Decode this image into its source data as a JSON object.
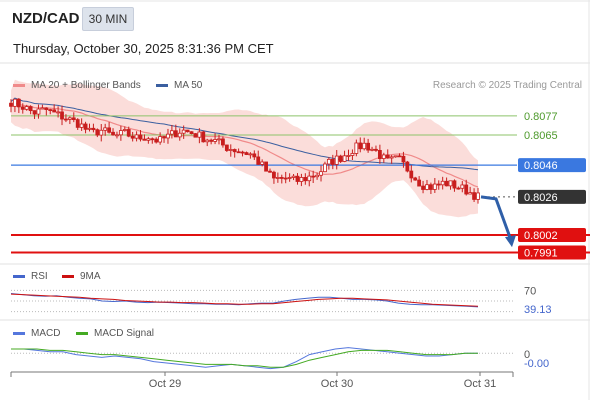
{
  "header": {
    "symbol": "NZD/CAD",
    "timeframe": "30 MIN",
    "datetime": "Thursday, October 30, 2025 8:31:36 PM CET"
  },
  "legend": {
    "ma20_label": "MA 20 + Bollinger Bands",
    "ma50_label": "MA 50",
    "rsi_label": "RSI",
    "rsi_ma_label": "9MA",
    "macd_label": "MACD",
    "macd_signal_label": "MACD Signal",
    "credit": "Research © 2025 Trading Central"
  },
  "colors": {
    "ma20": "#f08a8a",
    "bands_fill": "#fbd9d6",
    "ma50": "#3b5fa0",
    "candle": "#c81e1e",
    "resistance": "#8cc36a",
    "pivot": "#3a78e0",
    "support": "#e01010",
    "price": "#333333",
    "rsi": "#4466cc",
    "rsi_ma": "#cc1111",
    "macd": "#5577dd",
    "macd_signal": "#44aa22",
    "arrow": "#2f5fa8"
  },
  "chart_data": [
    {
      "type": "candlestick",
      "name": "price",
      "x_labels": [
        "Oct 29",
        "Oct 30",
        "Oct 31"
      ],
      "ylim": [
        0.7985,
        0.8087
      ],
      "close_path": [
        0.8086,
        0.8083,
        0.8079,
        0.8081,
        0.8078,
        0.8075,
        0.8072,
        0.8066,
        0.8068,
        0.8064,
        0.8066,
        0.8063,
        0.8064,
        0.8061,
        0.8065,
        0.8068,
        0.8066,
        0.8063,
        0.8061,
        0.8057,
        0.8055,
        0.8053,
        0.8046,
        0.8037,
        0.8038,
        0.8036,
        0.8038,
        0.8041,
        0.8048,
        0.8051,
        0.8056,
        0.8059,
        0.8055,
        0.8048,
        0.805,
        0.8042,
        0.8034,
        0.8032,
        0.8035,
        0.8033,
        0.803,
        0.8026
      ],
      "levels": [
        {
          "label": "0.8077",
          "value": 0.8077,
          "role": "resistance"
        },
        {
          "label": "0.8065",
          "value": 0.8065,
          "role": "resistance"
        },
        {
          "label": "0.8046",
          "value": 0.8046,
          "role": "pivot"
        },
        {
          "label": "0.8026",
          "value": 0.8026,
          "role": "last price"
        },
        {
          "label": "0.8002",
          "value": 0.8002,
          "role": "support"
        },
        {
          "label": "0.7991",
          "value": 0.7991,
          "role": "support"
        }
      ],
      "projection": {
        "from": 0.8026,
        "to": 0.7995,
        "direction": "down"
      }
    },
    {
      "type": "line",
      "name": "RSI",
      "ticks": [
        {
          "label": "70",
          "value": 70
        }
      ],
      "current_label": "39.13",
      "ylim": [
        20,
        80
      ],
      "series": [
        {
          "name": "RSI",
          "values": [
            64,
            62,
            60,
            59,
            60,
            57,
            55,
            54,
            50,
            49,
            50,
            48,
            47,
            48,
            47,
            46,
            45,
            45,
            44,
            44,
            43,
            45,
            46,
            46,
            50,
            53,
            55,
            57,
            57,
            55,
            53,
            53,
            52,
            50,
            46,
            44,
            43,
            43,
            42,
            41,
            40,
            39
          ]
        },
        {
          "name": "9MA",
          "values": [
            63,
            62,
            61,
            60,
            59,
            58,
            57,
            55,
            54,
            53,
            51,
            50,
            49,
            48,
            48,
            47,
            47,
            46,
            45,
            45,
            44,
            44,
            45,
            45,
            47,
            49,
            51,
            53,
            54,
            55,
            55,
            54,
            53,
            52,
            50,
            48,
            46,
            44,
            43,
            42,
            41,
            40
          ]
        }
      ]
    },
    {
      "type": "line",
      "name": "MACD",
      "ticks": [
        {
          "label": "0",
          "value": 0
        }
      ],
      "current_label": "-0.00",
      "ylim": [
        -0.0012,
        0.0008
      ],
      "series": [
        {
          "name": "MACD",
          "values": [
            0.0003,
            0.0003,
            0.0002,
            0.0001,
            0.0001,
            -0.0001,
            -0.0002,
            -0.0003,
            -0.0002,
            -0.0003,
            -0.0004,
            -0.0006,
            -0.0007,
            -0.0008,
            -0.0009,
            -0.001,
            -0.0009,
            -0.0008,
            -0.0009,
            -0.001,
            -0.0011,
            -0.001,
            -0.0006,
            -0.0001,
            0.0001,
            0.0003,
            0.0004,
            0.0003,
            0.0002,
            0.0001,
            0.0,
            -0.0001,
            -0.0002,
            -0.0002,
            -0.0001,
            0.0,
            0.0
          ]
        },
        {
          "name": "MACD Signal",
          "values": [
            0.0003,
            0.0003,
            0.0003,
            0.0002,
            0.0002,
            0.0001,
            0.0,
            -0.0001,
            -0.0001,
            -0.0002,
            -0.0003,
            -0.0004,
            -0.0005,
            -0.0006,
            -0.0007,
            -0.0008,
            -0.0008,
            -0.0008,
            -0.0009,
            -0.0009,
            -0.001,
            -0.001,
            -0.0008,
            -0.0005,
            -0.0003,
            -0.0001,
            0.0001,
            0.0002,
            0.0002,
            0.0002,
            0.0001,
            0.0,
            -0.0001,
            -0.0001,
            -0.0001,
            0.0,
            0.0
          ]
        }
      ]
    }
  ]
}
